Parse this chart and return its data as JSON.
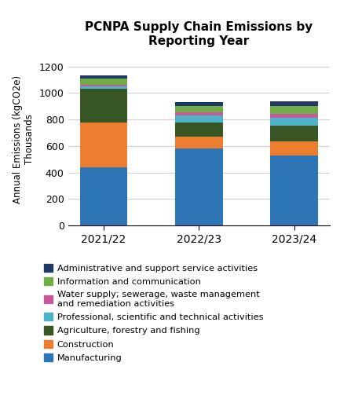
{
  "title": "PCNPA Supply Chain Emissions by\nReporting Year",
  "ylabel": "Annual Emissions (kgCO2e)\nThousands",
  "years": [
    "2021/22",
    "2022/23",
    "2023/24"
  ],
  "categories_bottom_to_top": [
    "Manufacturing",
    "Construction",
    "Agriculture, forestry and fishing",
    "Professional, scientific and technical activities",
    "Water supply; sewerage, waste management and remediation activities",
    "Information and communication",
    "Administrative and support service activities"
  ],
  "colors_bottom_to_top": [
    "#2e75b6",
    "#ed7d31",
    "#375623",
    "#4eb3c8",
    "#c55a9b",
    "#70ad47",
    "#1f3864"
  ],
  "data": {
    "2021/22": [
      440,
      335,
      255,
      20,
      12,
      45,
      25
    ],
    "2022/23": [
      583,
      87,
      105,
      55,
      22,
      50,
      28
    ],
    "2023/24": [
      528,
      110,
      118,
      58,
      28,
      62,
      33
    ]
  },
  "legend_labels": [
    "Administrative and support service activities",
    "Information and communication",
    "Water supply; sewerage, waste management\nand remediation activities",
    "Professional, scientific and technical activities",
    "Agriculture, forestry and fishing",
    "Construction",
    "Manufacturing"
  ],
  "legend_colors": [
    "#1f3864",
    "#70ad47",
    "#c55a9b",
    "#4eb3c8",
    "#375623",
    "#ed7d31",
    "#2e75b6"
  ],
  "ylim": [
    0,
    1300
  ],
  "yticks": [
    0,
    200,
    400,
    600,
    800,
    1000,
    1200
  ],
  "figsize": [
    4.33,
    5.22
  ],
  "dpi": 100
}
